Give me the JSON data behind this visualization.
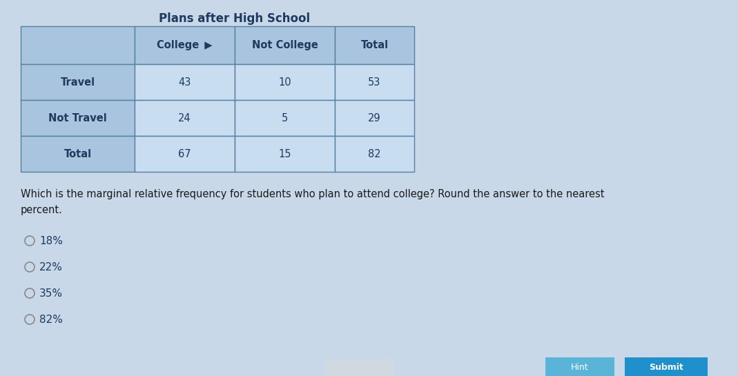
{
  "title": "Plans after High School",
  "title_fontsize": 12,
  "title_fontweight": "bold",
  "col_headers": [
    "College  ▶",
    "Not College",
    "Total"
  ],
  "row_headers": [
    "Travel",
    "Not Travel",
    "Total"
  ],
  "table_data": [
    [
      "43",
      "10",
      "53"
    ],
    [
      "24",
      "5",
      "29"
    ],
    [
      "67",
      "15",
      "82"
    ]
  ],
  "question_text": "Which is the marginal relative frequency for students who plan to attend college? Round the answer to the nearest\npercent.",
  "choices": [
    "18%",
    "22%",
    "35%",
    "82%"
  ],
  "header_bg_color": "#a8c4de",
  "cell_bg_color": "#c8ddf0",
  "total_col_bg": "#a8c4de",
  "border_color": "#5580a0",
  "text_color": "#1e3a5f",
  "body_bg": "#c8d8e8",
  "choice_text_color": "#1e3a5f",
  "question_text_color": "#1a1a1a",
  "radio_color": "#888888",
  "btn_hint_color": "#5ab4d8",
  "btn_submit_color": "#2090cc",
  "btn_text_color": "#ffffff"
}
